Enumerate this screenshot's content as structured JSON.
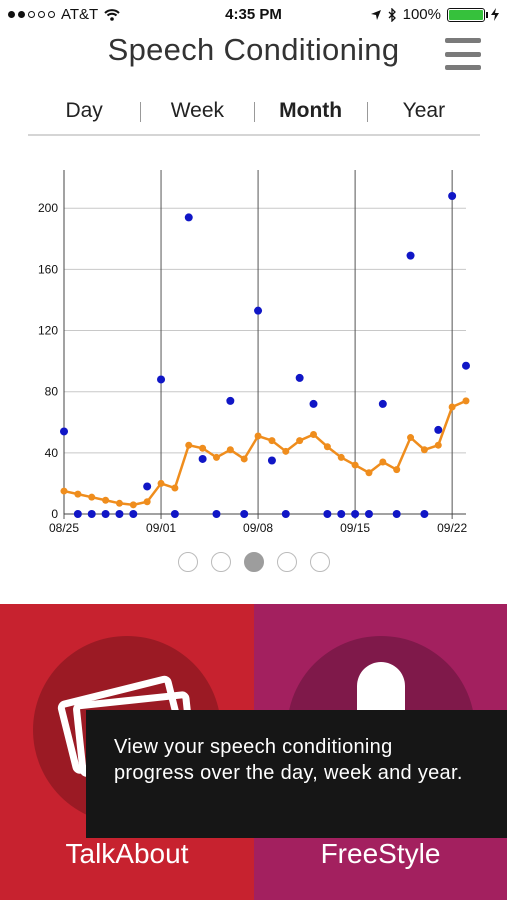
{
  "status": {
    "carrier": "AT&T",
    "time": "4:35 PM",
    "battery": "100%"
  },
  "header": {
    "title": "Speech Conditioning"
  },
  "tabs": [
    {
      "label": "Day"
    },
    {
      "label": "Week"
    },
    {
      "label": "Month",
      "active": true
    },
    {
      "label": "Year"
    }
  ],
  "chart_data": {
    "type": "scatter+line",
    "y_ticks": [
      "0",
      "40",
      "80",
      "120",
      "160",
      "200"
    ],
    "ylim": [
      0,
      225
    ],
    "x_ticks": [
      {
        "label": "08/25",
        "day": 0
      },
      {
        "label": "09/01",
        "day": 7
      },
      {
        "label": "09/08",
        "day": 14
      },
      {
        "label": "09/15",
        "day": 21
      },
      {
        "label": "09/22",
        "day": 28
      }
    ],
    "xlim": [
      0,
      29
    ],
    "series": [
      {
        "kind": "scatter",
        "color": "#1016c6",
        "points": [
          [
            0,
            54
          ],
          [
            1,
            0
          ],
          [
            2,
            0
          ],
          [
            3,
            0
          ],
          [
            4,
            0
          ],
          [
            5,
            0
          ],
          [
            6,
            18
          ],
          [
            7,
            88
          ],
          [
            8,
            0
          ],
          [
            9,
            194
          ],
          [
            10,
            36
          ],
          [
            11,
            0
          ],
          [
            12,
            74
          ],
          [
            13,
            0
          ],
          [
            14,
            133
          ],
          [
            15,
            35
          ],
          [
            16,
            0
          ],
          [
            17,
            89
          ],
          [
            18,
            72
          ],
          [
            19,
            0
          ],
          [
            20,
            0
          ],
          [
            21,
            0
          ],
          [
            22,
            0
          ],
          [
            23,
            72
          ],
          [
            24,
            0
          ],
          [
            25,
            169
          ],
          [
            26,
            0
          ],
          [
            27,
            55
          ],
          [
            28,
            208
          ],
          [
            29,
            97
          ]
        ]
      },
      {
        "kind": "line",
        "color": "#ef8d1d",
        "points": [
          [
            0,
            15
          ],
          [
            1,
            13
          ],
          [
            2,
            11
          ],
          [
            3,
            9
          ],
          [
            4,
            7
          ],
          [
            5,
            6
          ],
          [
            6,
            8
          ],
          [
            7,
            20
          ],
          [
            8,
            17
          ],
          [
            9,
            45
          ],
          [
            10,
            43
          ],
          [
            11,
            37
          ],
          [
            12,
            42
          ],
          [
            13,
            36
          ],
          [
            14,
            51
          ],
          [
            15,
            48
          ],
          [
            16,
            41
          ],
          [
            17,
            48
          ],
          [
            18,
            52
          ],
          [
            19,
            44
          ],
          [
            20,
            37
          ],
          [
            21,
            32
          ],
          [
            22,
            27
          ],
          [
            23,
            34
          ],
          [
            24,
            29
          ],
          [
            25,
            50
          ],
          [
            26,
            42
          ],
          [
            27,
            45
          ],
          [
            28,
            70
          ],
          [
            29,
            74
          ]
        ]
      }
    ]
  },
  "pager": {
    "count": 5,
    "active": 2
  },
  "actions": [
    {
      "label": "TalkAbout",
      "color": "#c7222f"
    },
    {
      "label": "FreeStyle",
      "color": "#a3205f"
    }
  ],
  "tooltip": {
    "text": "View your speech conditioning progress over the day, week and year."
  }
}
